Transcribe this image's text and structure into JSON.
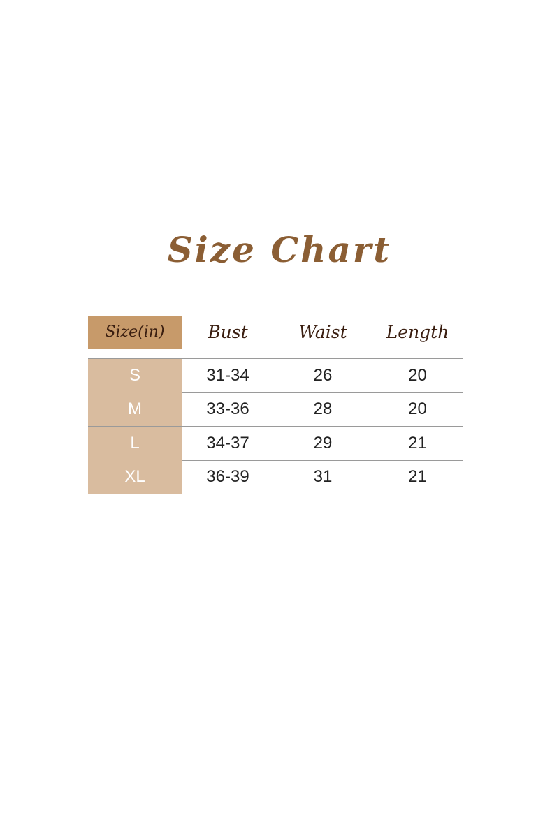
{
  "title": "Size Chart",
  "table": {
    "headers": [
      "Size(in)",
      "Bust",
      "Waist",
      "Length"
    ],
    "rows": [
      [
        "S",
        "31-34",
        "26",
        "20"
      ],
      [
        "M",
        "33-36",
        "28",
        "20"
      ],
      [
        "L",
        "34-37",
        "29",
        "21"
      ],
      [
        "XL",
        "36-39",
        "31",
        "21"
      ]
    ]
  },
  "colors": {
    "title": "#8b5e34",
    "header_size_bg": "#c79a6a",
    "size_col_bg": "#d9bc9f"
  }
}
